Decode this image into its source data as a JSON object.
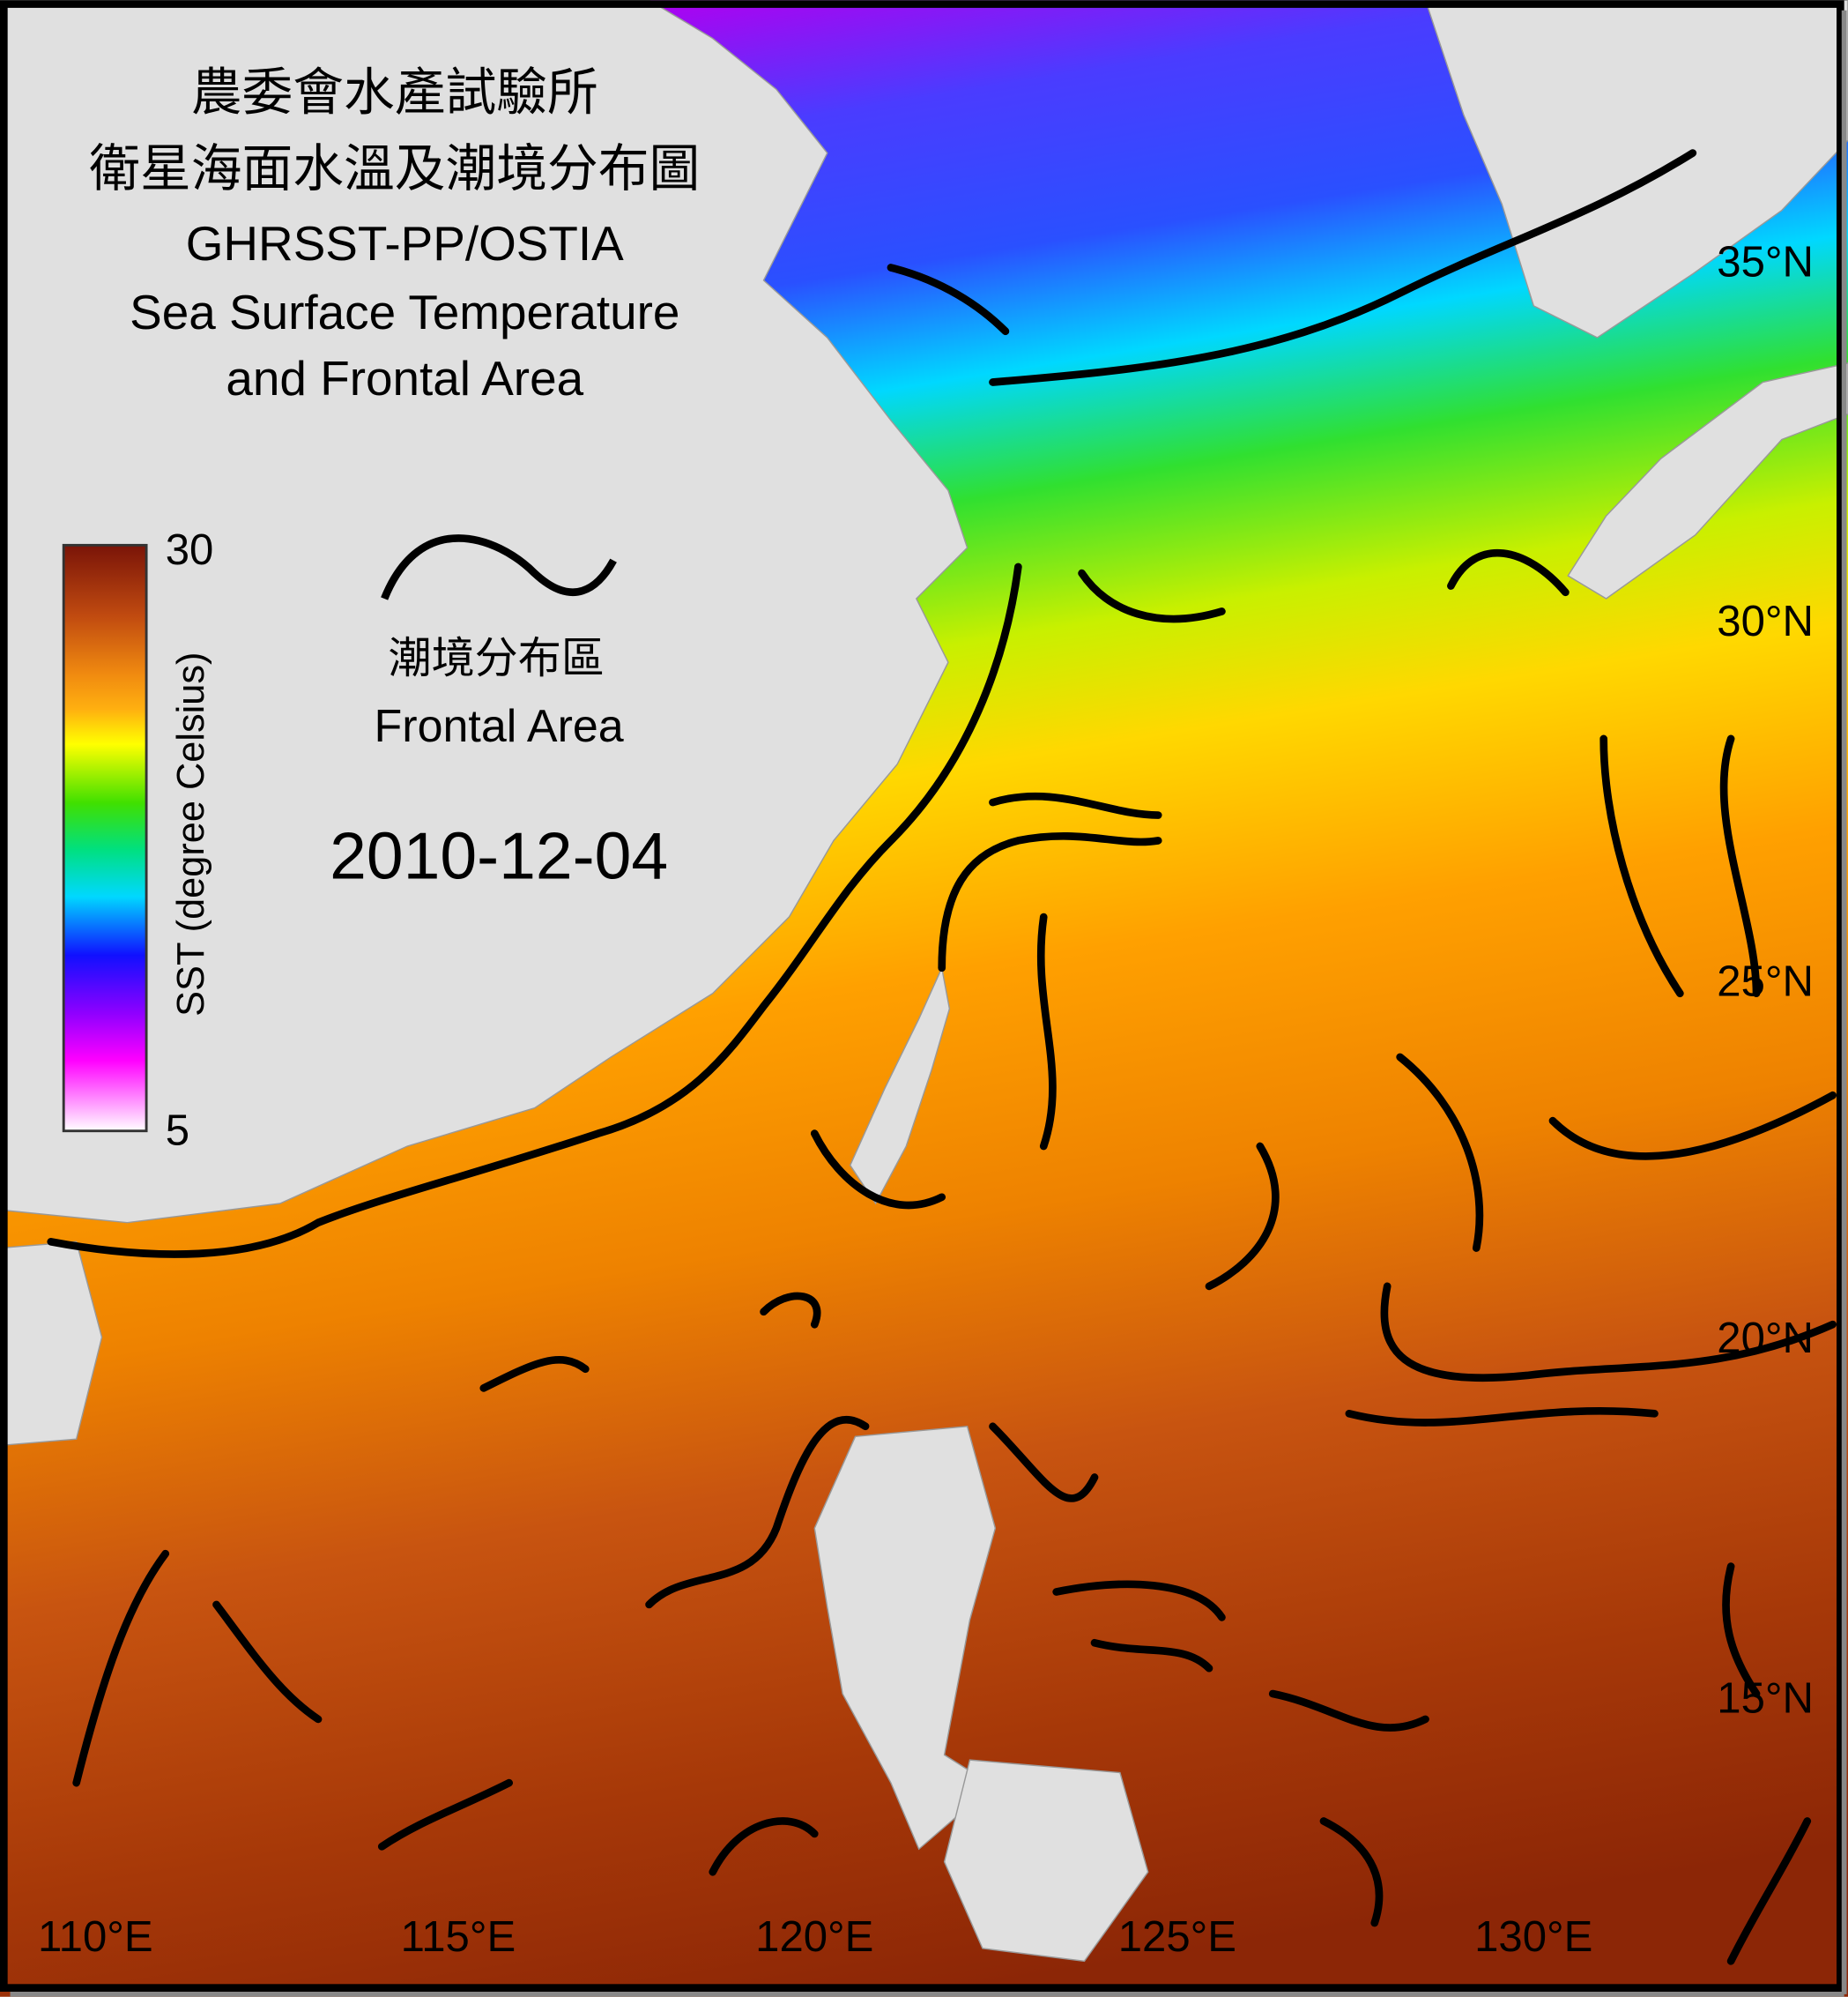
{
  "header": {
    "title_lines": [
      "農委會水產試驗所",
      "衛星海面水溫及潮境分布圖",
      "GHRSST-PP/OSTIA",
      "Sea Surface Temperature",
      "and Frontal Area"
    ]
  },
  "colorbar": {
    "label": "SST (degree Celsius)",
    "max": 30,
    "min": 5
  },
  "legend": {
    "label_zh": "潮境分布區",
    "label_en": "Frontal Area"
  },
  "date": "2010-12-04",
  "lat_labels": [
    "35°N",
    "30°N",
    "25°N",
    "20°N",
    "15°N"
  ],
  "lon_labels": [
    "110°E",
    "115°E",
    "120°E",
    "125°E",
    "130°E"
  ]
}
